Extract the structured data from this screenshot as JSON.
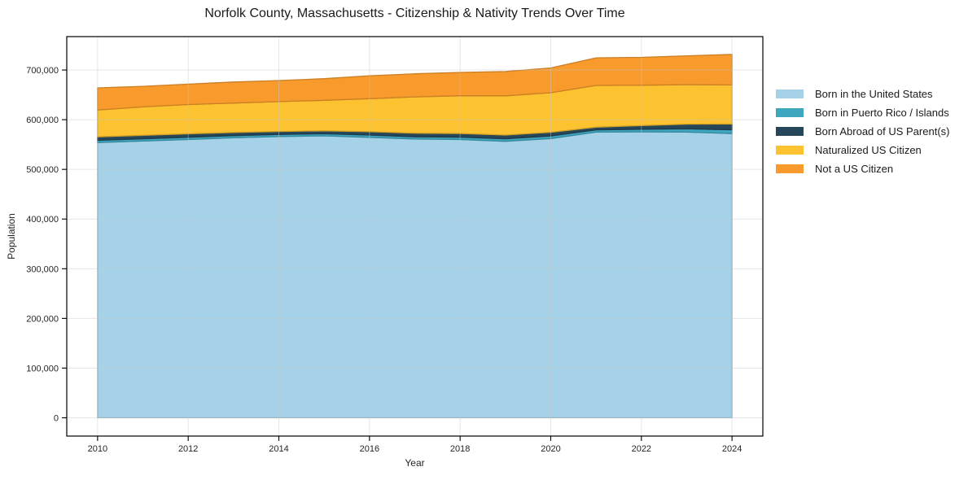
{
  "title": "Norfolk County, Massachusetts - Citizenship & Nativity Trends Over Time",
  "chart_data": {
    "type": "area",
    "stacked": true,
    "title": "Norfolk County, Massachusetts - Citizenship & Nativity Trends Over Time",
    "xlabel": "Year",
    "ylabel": "Population",
    "x": [
      2010,
      2011,
      2012,
      2013,
      2014,
      2015,
      2016,
      2017,
      2018,
      2019,
      2020,
      2021,
      2022,
      2023,
      2024
    ],
    "series": [
      {
        "name": "Born in the United States",
        "color": "#a5d2e8",
        "values": [
          554000,
          557000,
          560000,
          563500,
          566000,
          567500,
          564500,
          561000,
          560000,
          556500,
          562000,
          575000,
          575500,
          575000,
          572000
        ]
      },
      {
        "name": "Born in Puerto Rico / Islands",
        "color": "#3ea6bf",
        "values": [
          4500,
          4600,
          4600,
          4500,
          4300,
          4200,
          4500,
          4700,
          4800,
          5000,
          5200,
          4500,
          5200,
          6500,
          7700
        ]
      },
      {
        "name": "Born Abroad of US Parent(s)",
        "color": "#26465a",
        "values": [
          7000,
          6900,
          6900,
          6300,
          6000,
          5800,
          6800,
          7200,
          7300,
          7500,
          7500,
          5500,
          7300,
          9500,
          11500
        ]
      },
      {
        "name": "Naturalized US Citizen",
        "color": "#fcc230",
        "values": [
          54000,
          57300,
          59000,
          59200,
          60000,
          61500,
          66500,
          73000,
          76000,
          79000,
          79500,
          84000,
          81500,
          79500,
          78700
        ]
      },
      {
        "name": "Not a US Citizen",
        "color": "#f89a2c",
        "values": [
          44500,
          41400,
          41000,
          42300,
          42500,
          43500,
          46200,
          46400,
          47000,
          49000,
          50000,
          55500,
          56000,
          58000,
          61500
        ]
      }
    ],
    "xticks": [
      2010,
      2012,
      2014,
      2016,
      2018,
      2020,
      2022,
      2024
    ],
    "yticks": [
      0,
      100000,
      200000,
      300000,
      400000,
      500000,
      600000,
      700000
    ],
    "xlim": [
      2009.32,
      2024.68
    ],
    "ylim": [
      -36800,
      767200
    ],
    "grid": true,
    "legend_position": "right"
  }
}
